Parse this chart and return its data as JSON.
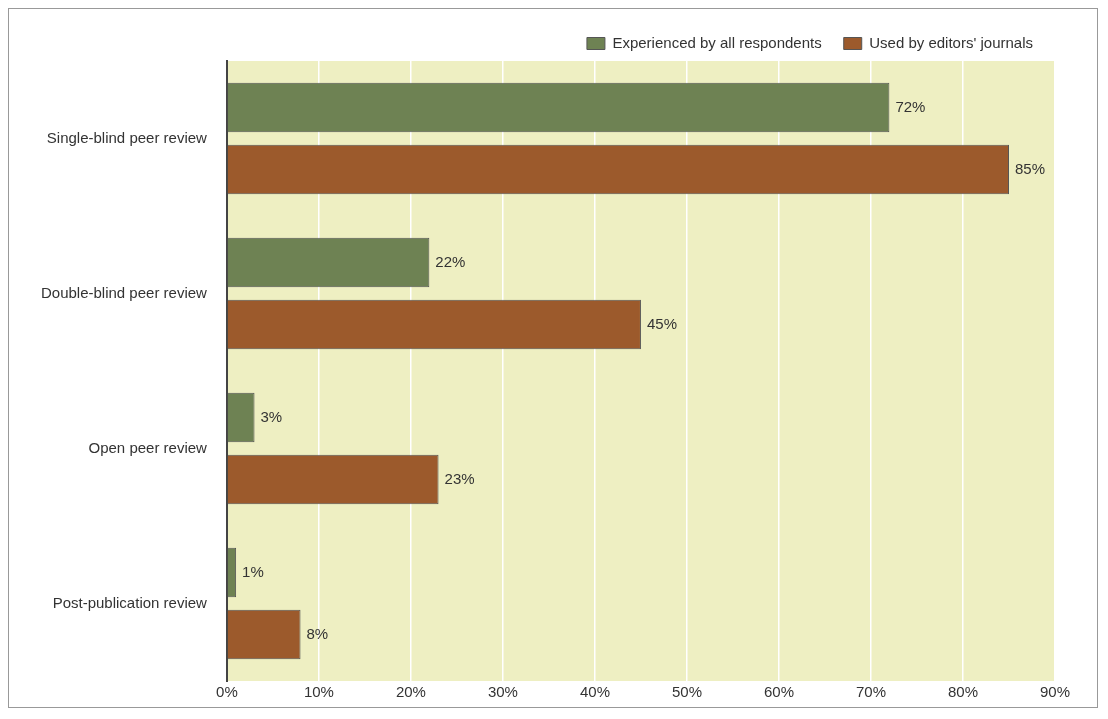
{
  "chart_data": {
    "type": "bar",
    "orientation": "horizontal",
    "categories": [
      "Single-blind peer review",
      "Double-blind peer review",
      "Open peer review",
      "Post-publication review"
    ],
    "series": [
      {
        "name": "Experienced by all respondents",
        "color": "#6e8253",
        "values": [
          72,
          22,
          3,
          1
        ],
        "value_labels": [
          "72%",
          "22%",
          "3%",
          "1%"
        ]
      },
      {
        "name": "Used by editors' journals",
        "color": "#9c5a2c",
        "values": [
          85,
          45,
          23,
          8
        ],
        "value_labels": [
          "85%",
          "45%",
          "23%",
          "8%"
        ]
      }
    ],
    "xlim": [
      0,
      90
    ],
    "xticks": [
      {
        "value": 0,
        "label": "0%"
      },
      {
        "value": 10,
        "label": "10%"
      },
      {
        "value": 20,
        "label": "20%"
      },
      {
        "value": 30,
        "label": "30%"
      },
      {
        "value": 40,
        "label": "40%"
      },
      {
        "value": 50,
        "label": "50%"
      },
      {
        "value": 60,
        "label": "60%"
      },
      {
        "value": 70,
        "label": "70%"
      },
      {
        "value": 80,
        "label": "80%"
      },
      {
        "value": 90,
        "label": "90%"
      }
    ],
    "grid": "x",
    "legend": "top right"
  }
}
